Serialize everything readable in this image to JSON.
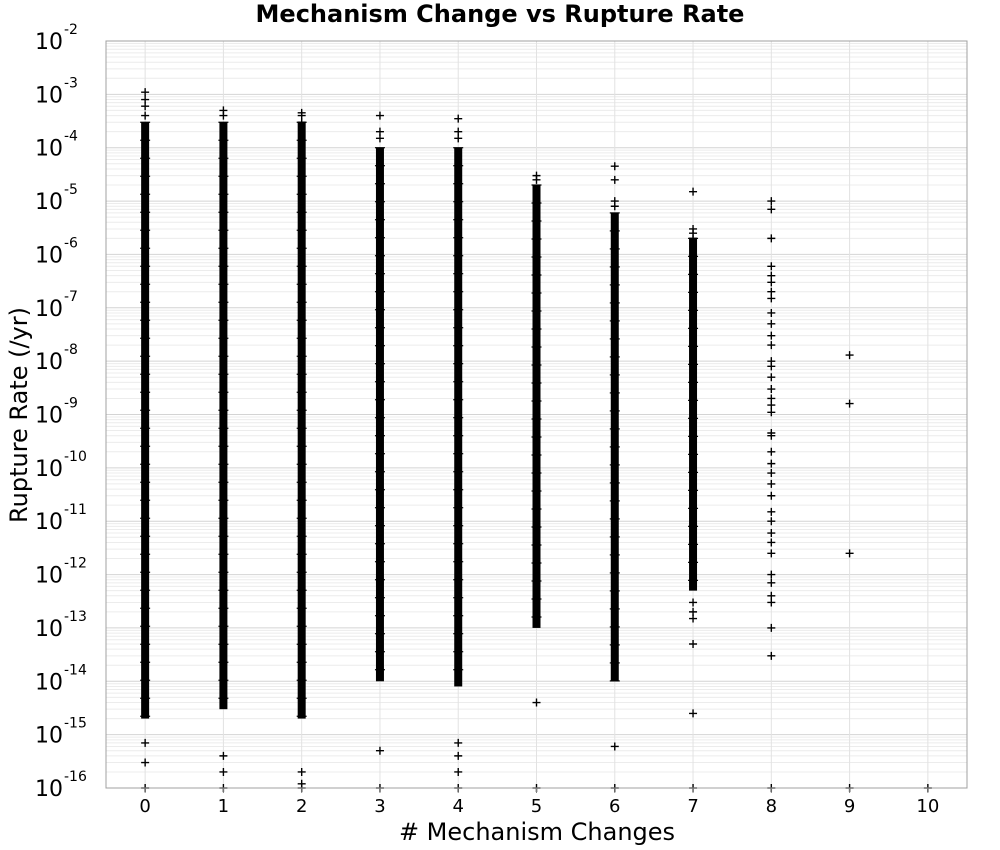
{
  "chart_data": {
    "type": "scatter",
    "title": "Mechanism Change vs Rupture Rate",
    "xlabel": "# Mechanism Changes",
    "ylabel": "Rupture Rate (/yr)",
    "x_ticks": [
      "0",
      "1",
      "2",
      "3",
      "4",
      "5",
      "6",
      "7",
      "8",
      "9",
      "10"
    ],
    "y_scale": "log",
    "ylim": [
      1e-16,
      0.01
    ],
    "xlim": [
      -0.5,
      10.5
    ],
    "y_tick_labels": [
      {
        "base": "10",
        "exp": "-16"
      },
      {
        "base": "10",
        "exp": "-15"
      },
      {
        "base": "10",
        "exp": "-14"
      },
      {
        "base": "10",
        "exp": "-13"
      },
      {
        "base": "10",
        "exp": "-12"
      },
      {
        "base": "10",
        "exp": "-11"
      },
      {
        "base": "10",
        "exp": "-10"
      },
      {
        "base": "10",
        "exp": "-9"
      },
      {
        "base": "10",
        "exp": "-8"
      },
      {
        "base": "10",
        "exp": "-7"
      },
      {
        "base": "10",
        "exp": "-6"
      },
      {
        "base": "10",
        "exp": "-5"
      },
      {
        "base": "10",
        "exp": "-4"
      },
      {
        "base": "10",
        "exp": "-3"
      },
      {
        "base": "10",
        "exp": "-2"
      }
    ],
    "grid": true,
    "marker": "+",
    "marker_color": "#000000",
    "series": [
      {
        "values": [
          {
            "x": 0,
            "dense": [
              2e-15,
              0.0003
            ],
            "points": [
              0.0011,
              0.0008,
              0.0006,
              0.0004,
              7e-16,
              3e-16,
              1e-16
            ]
          },
          {
            "x": 1,
            "dense": [
              3e-15,
              0.0003
            ],
            "points": [
              0.0005,
              0.0004,
              4e-16,
              2e-16,
              1e-16
            ]
          },
          {
            "x": 2,
            "dense": [
              2e-15,
              0.0003
            ],
            "points": [
              0.00045,
              0.0004,
              0.0003,
              2e-16,
              1.2e-16,
              1e-16
            ]
          },
          {
            "x": 3,
            "dense": [
              1e-14,
              0.0001
            ],
            "points": [
              0.0004,
              0.0002,
              0.00015,
              5e-16,
              1e-16
            ]
          },
          {
            "x": 4,
            "dense": [
              8e-15,
              0.0001
            ],
            "points": [
              0.00035,
              0.0002,
              0.00015,
              7e-16,
              4e-16,
              2e-16,
              1e-16
            ]
          },
          {
            "x": 5,
            "dense": [
              1e-13,
              2e-05
            ],
            "points": [
              3e-05,
              2.5e-05,
              4e-15,
              1e-16
            ]
          },
          {
            "x": 6,
            "dense": [
              1e-14,
              6e-06
            ],
            "points": [
              4.5e-05,
              2.5e-05,
              1e-05,
              8e-06,
              6e-16,
              1e-16
            ]
          },
          {
            "x": 7,
            "dense": [
              5e-13,
              2e-06
            ],
            "points": [
              1.5e-05,
              3e-06,
              2.5e-06,
              2e-06,
              3e-13,
              2e-13,
              1.5e-13,
              5e-14,
              2.5e-15,
              1e-16
            ]
          },
          {
            "x": 8,
            "dense": null,
            "points": [
              1e-05,
              7e-06,
              2e-06,
              6e-07,
              4e-07,
              3e-07,
              2e-07,
              1.5e-07,
              8e-08,
              5e-08,
              3e-08,
              2e-08,
              1e-08,
              8e-09,
              5e-09,
              3e-09,
              2e-09,
              1.5e-09,
              1.1e-09,
              4.5e-10,
              4e-10,
              2e-10,
              1.2e-10,
              8e-11,
              5e-11,
              3e-11,
              1.5e-11,
              1e-11,
              6e-12,
              4e-12,
              2.5e-12,
              1e-12,
              7e-13,
              4e-13,
              3e-13,
              1e-13,
              3e-14,
              1e-16
            ]
          },
          {
            "x": 9,
            "dense": null,
            "points": [
              1.3e-08,
              1.6e-09,
              2.5e-12,
              1e-16
            ]
          },
          {
            "x": 10,
            "dense": null,
            "points": [
              1e-16
            ]
          }
        ]
      }
    ]
  }
}
